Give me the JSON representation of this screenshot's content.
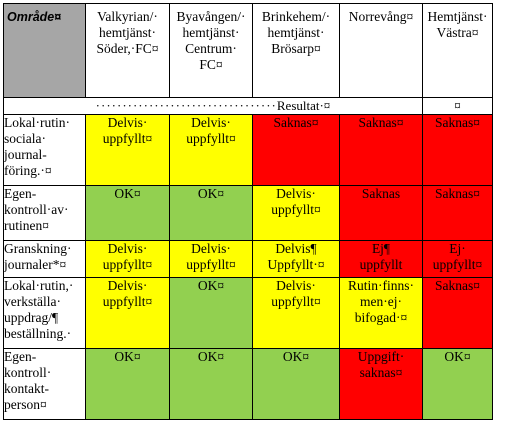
{
  "header": {
    "corner": "Område¤",
    "columns": [
      [
        "Valkyrian/·",
        "hemtjänst·",
        "Söder,·FC¤"
      ],
      [
        "Byavången/·",
        "hemtjänst·",
        "Centrum·",
        "FC¤"
      ],
      [
        "Brinkehem/·",
        "hemtjänst·",
        "Brösarp¤"
      ],
      [
        "Norrevång¤"
      ],
      [
        "Hemtjänst·",
        "Västra¤"
      ]
    ]
  },
  "resultat_label": "Resultat·¤",
  "resultat_marker": "¤",
  "rows": [
    {
      "label": [
        "Lokal·rutin·",
        "sociala·",
        "journal-",
        "föring.·¤"
      ],
      "cells": [
        {
          "color": "y",
          "lines": [
            "Delvis·",
            "uppfyllt¤"
          ]
        },
        {
          "color": "y",
          "lines": [
            "Delvis·",
            "uppfyllt¤"
          ]
        },
        {
          "color": "r",
          "lines": [
            "Saknas¤"
          ]
        },
        {
          "color": "r",
          "lines": [
            "Saknas¤"
          ]
        },
        {
          "color": "r",
          "lines": [
            "Saknas¤"
          ]
        }
      ]
    },
    {
      "label": [
        "Egen-",
        "kontroll·av·",
        "rutinen¤"
      ],
      "cells": [
        {
          "color": "g",
          "lines": [
            "OK¤"
          ]
        },
        {
          "color": "g",
          "lines": [
            "OK¤"
          ]
        },
        {
          "color": "y",
          "lines": [
            "Delvis·",
            "uppfyllt¤"
          ]
        },
        {
          "color": "r",
          "lines": [
            "Saknas"
          ]
        },
        {
          "color": "r",
          "lines": [
            "Saknas¤"
          ]
        }
      ]
    },
    {
      "label": [
        "Granskning·",
        "journaler*¤"
      ],
      "cells": [
        {
          "color": "y",
          "lines": [
            "Delvis·",
            "uppfyllt¤"
          ]
        },
        {
          "color": "y",
          "lines": [
            "Delvis·",
            "uppfyllt¤"
          ]
        },
        {
          "color": "y",
          "lines": [
            "Delvis¶",
            "Uppfyllt·¤"
          ]
        },
        {
          "color": "r",
          "lines": [
            "Ej¶",
            "uppfyllt"
          ]
        },
        {
          "color": "r",
          "lines": [
            "Ej·",
            "uppfyllt¤"
          ]
        }
      ]
    },
    {
      "label": [
        "Lokal·rutin,·",
        "verkställa·",
        "uppdrag/¶",
        "beställning.·"
      ],
      "cells": [
        {
          "color": "y",
          "lines": [
            "Delvis·",
            "uppfyllt¤"
          ]
        },
        {
          "color": "g",
          "lines": [
            "OK¤"
          ]
        },
        {
          "color": "y",
          "lines": [
            "Delvis·",
            "uppfyllt¤"
          ]
        },
        {
          "color": "y",
          "lines": [
            "Rutin·finns·",
            "men·ej·",
            "bifogad·¤"
          ]
        },
        {
          "color": "r",
          "lines": [
            "Saknas¤"
          ]
        }
      ]
    },
    {
      "label": [
        "Egen-",
        "kontroll·",
        "kontakt-",
        "person¤"
      ],
      "cells": [
        {
          "color": "g",
          "lines": [
            "OK¤"
          ]
        },
        {
          "color": "g",
          "lines": [
            "OK¤"
          ]
        },
        {
          "color": "g",
          "lines": [
            "OK¤"
          ]
        },
        {
          "color": "r",
          "lines": [
            "Uppgift·",
            "saknas¤"
          ]
        },
        {
          "color": "g",
          "lines": [
            "OK¤"
          ]
        }
      ]
    }
  ],
  "colors": {
    "y": "#ffff00",
    "r": "#ff0000",
    "g": "#92d050"
  }
}
